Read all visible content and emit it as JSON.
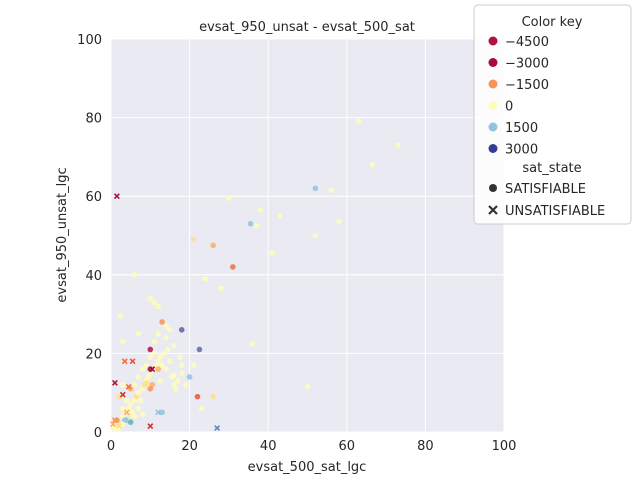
{
  "chart_data": {
    "type": "scatter",
    "title": "evsat_950_unsat - evsat_500_sat",
    "xlabel": "evsat_500_sat_lgc",
    "ylabel": "evsat_950_unsat_lgc",
    "xlim": [
      0,
      100
    ],
    "ylim": [
      0,
      100
    ],
    "xticks": [
      0,
      20,
      40,
      60,
      80,
      100
    ],
    "yticks": [
      0,
      20,
      40,
      60,
      80,
      100
    ],
    "grid": true,
    "background": "#eaeaf2",
    "legend": {
      "placement": "top-right, outside plot",
      "color_title": "Color key",
      "color_entries": [
        {
          "label": "−4500",
          "color": "#b2103f"
        },
        {
          "label": "−3000",
          "color": "#a50d39"
        },
        {
          "label": "−1500",
          "color": "#f89455"
        },
        {
          "label": "0",
          "color": "#fefdbd"
        },
        {
          "label": "1500",
          "color": "#91c4df"
        },
        {
          "label": "3000",
          "color": "#333c97"
        }
      ],
      "marker_title": "sat_state",
      "marker_entries": [
        {
          "label": "SATISFIABLE",
          "marker": "circle"
        },
        {
          "label": "UNSATISFIABLE",
          "marker": "x"
        }
      ]
    },
    "series": [
      {
        "name": "SATISFIABLE",
        "marker": "circle",
        "points": [
          [
            0.5,
            1
          ],
          [
            1,
            2
          ],
          [
            1.5,
            3
          ],
          [
            2,
            1
          ],
          [
            2.5,
            2
          ],
          [
            3,
            4
          ],
          [
            3.5,
            3
          ],
          [
            4,
            5
          ],
          [
            4.5,
            6
          ],
          [
            5,
            7
          ],
          [
            5.5,
            5
          ],
          [
            6,
            8
          ],
          [
            6.5,
            9
          ],
          [
            7,
            10
          ],
          [
            7.5,
            8
          ],
          [
            8,
            11
          ],
          [
            8.5,
            12
          ],
          [
            9,
            13
          ],
          [
            9.5,
            14
          ],
          [
            10,
            15
          ],
          [
            10.5,
            12
          ],
          [
            11,
            16
          ],
          [
            11.5,
            17
          ],
          [
            12,
            18
          ],
          [
            12.5,
            19
          ],
          [
            13,
            17
          ],
          [
            13.5,
            20
          ],
          [
            14,
            16
          ],
          [
            14.5,
            21
          ],
          [
            15,
            18
          ],
          [
            15.5,
            14
          ],
          [
            16,
            12
          ],
          [
            16.5,
            11
          ],
          [
            17,
            13
          ],
          [
            17.5,
            19
          ],
          [
            18,
            15
          ],
          [
            4,
            3
          ],
          [
            5,
            3
          ],
          [
            6,
            4
          ],
          [
            3,
            6
          ],
          [
            2,
            9
          ],
          [
            3,
            12
          ],
          [
            4,
            8
          ],
          [
            6,
            12
          ],
          [
            7,
            14
          ],
          [
            8,
            16
          ],
          [
            9,
            17
          ],
          [
            10,
            19
          ],
          [
            11,
            23
          ],
          [
            12,
            25
          ],
          [
            13,
            28
          ],
          [
            14,
            24
          ],
          [
            15,
            26
          ],
          [
            16,
            22
          ],
          [
            10,
            34
          ],
          [
            11,
            33
          ],
          [
            6,
            40
          ],
          [
            2.5,
            29.5
          ],
          [
            3,
            23
          ],
          [
            7,
            25
          ],
          [
            10,
            11
          ],
          [
            10,
            21
          ],
          [
            10,
            16
          ],
          [
            12,
            16
          ],
          [
            12.5,
            13
          ],
          [
            22,
            9
          ],
          [
            22.5,
            21
          ],
          [
            18,
            26
          ],
          [
            31,
            42
          ],
          [
            26,
            47.5
          ],
          [
            21,
            49
          ],
          [
            24,
            39
          ],
          [
            28,
            36.5
          ],
          [
            36,
            22.5
          ],
          [
            50,
            11.5
          ],
          [
            52,
            50
          ],
          [
            52,
            62
          ],
          [
            56,
            61.5
          ],
          [
            58,
            53.5
          ],
          [
            66.5,
            68
          ],
          [
            73,
            73
          ],
          [
            63,
            79
          ],
          [
            43,
            55
          ],
          [
            38,
            56.5
          ],
          [
            37,
            52.5
          ],
          [
            35.5,
            53
          ],
          [
            41,
            45.5
          ],
          [
            30,
            59.5
          ],
          [
            26,
            9
          ],
          [
            23,
            6
          ],
          [
            20,
            14
          ],
          [
            13,
            5
          ],
          [
            5,
            2.5
          ],
          [
            7,
            6
          ],
          [
            8,
            4.5
          ],
          [
            3,
            2
          ],
          [
            1.5,
            0.5
          ],
          [
            16,
            14.5
          ],
          [
            18,
            17
          ],
          [
            14,
            27
          ],
          [
            12,
            32
          ],
          [
            11,
            20
          ],
          [
            9,
            12.5
          ],
          [
            19,
            12
          ],
          [
            21,
            17
          ],
          [
            5,
            11
          ]
        ],
        "colors": [
          "#fefdbd",
          "#fefdbd",
          "#f89455",
          "#fefdbd",
          "#fee08b",
          "#fefdbd",
          "#91c4df",
          "#fefdbd",
          "#fefdbd",
          "#fefdbd",
          "#fefdbd",
          "#fefdbd",
          "#fee08b",
          "#fefdbd",
          "#fefdbd",
          "#fefdbd",
          "#fee08b",
          "#fefdbd",
          "#fefdbd",
          "#fefdbd",
          "#fdae61",
          "#fefdbd",
          "#fefdbd",
          "#fefdbd",
          "#fefdbd",
          "#fefdbd",
          "#fefdbd",
          "#fefdbd",
          "#fefdbd",
          "#fefdbd",
          "#fefdbd",
          "#fefdbd",
          "#fefdbd",
          "#fefdbd",
          "#fefdbd",
          "#fefdbd",
          "#91c4df",
          "#e6f598",
          "#fefdbd",
          "#fefdbd",
          "#fee08b",
          "#fefdbd",
          "#fefdbd",
          "#fefdbd",
          "#fefdbd",
          "#fefdbd",
          "#fefdbd",
          "#fefdbd",
          "#fefdbd",
          "#fefdbd",
          "#f89455",
          "#fefdbd",
          "#fefdbd",
          "#fefdbd",
          "#fefdbd",
          "#fefdbd",
          "#fefdbd",
          "#fefdbd",
          "#fefdbd",
          "#fefdbd",
          "#f89455",
          "#b2103f",
          "#a50d39",
          "#fdae61",
          "#fefdbd",
          "#e8553d",
          "#5c6ab0",
          "#5c5fa8",
          "#f46d43",
          "#fdae61",
          "#fee08b",
          "#fefdbd",
          "#fefdbd",
          "#fefdbd",
          "#fefdbd",
          "#fefdbd",
          "#91c4df",
          "#fefdbd",
          "#fefdbd",
          "#fefdbd",
          "#fefdbd",
          "#fefdbd",
          "#fefdbd",
          "#fefdbd",
          "#fefdbd",
          "#91c4df",
          "#fefdbd",
          "#fefdbd",
          "#fee08b",
          "#fefdbd",
          "#91c4df",
          "#91c4df",
          "#5fa9d0",
          "#fefdbd",
          "#fefdbd",
          "#fefdbd",
          "#fefdbd",
          "#fefdbd",
          "#fefdbd",
          "#fefdbd",
          "#fefdbd",
          "#fefdbd",
          "#fee08b",
          "#fefdbd",
          "#fefdbd",
          "#fdae61"
        ]
      },
      {
        "name": "UNSATISFIABLE",
        "marker": "x",
        "points": [
          [
            1.5,
            60
          ],
          [
            1,
            12.5
          ],
          [
            3,
            9.5
          ],
          [
            3.5,
            18
          ],
          [
            4.5,
            11.5
          ],
          [
            5.5,
            18
          ],
          [
            10,
            1.5
          ],
          [
            27,
            1
          ],
          [
            10.5,
            16
          ],
          [
            1,
            3
          ],
          [
            0.5,
            2
          ],
          [
            2,
            1.5
          ],
          [
            4,
            5
          ],
          [
            12,
            5
          ]
        ],
        "colors": [
          "#b2103f",
          "#b2103f",
          "#d73027",
          "#f46d43",
          "#f46d43",
          "#e8553d",
          "#d73027",
          "#5c86c2",
          "#a50d39",
          "#f89455",
          "#fdae61",
          "#fee08b",
          "#fdae61",
          "#91c4df"
        ]
      }
    ]
  }
}
